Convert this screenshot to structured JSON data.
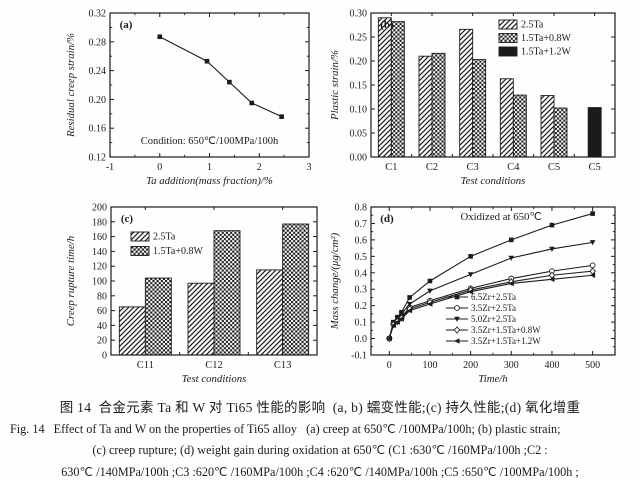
{
  "page": {
    "background": "#fefefe",
    "ink": "#1b1b1b"
  },
  "caption": {
    "zh": "图 14  合金元素 Ta 和 W 对 Ti65 性能的影响  (a, b) 蠕变性能;(c) 持久性能;(d) 氧化增重",
    "en1": "Fig. 14   Effect of Ta and W on the properties of Ti65 alloy   (a) creep at 650℃ /100MPa/100h; (b) plastic strain;",
    "en2": "(c) creep rupture; (d) weight gain during oxidation at 650℃ (C1 :630℃ /160MPa/100h ;C2 :",
    "en3": "630℃ /140MPa/100h ;C3 :620℃ /160MPa/100h ;C4 :620℃ /140MPa/100h ;C5 :650℃ /100MPa/100h ;"
  },
  "chart_data": [
    {
      "type": "line",
      "panel_label": "(a)",
      "xlabel": "Ta addition(mass fraction)/%",
      "ylabel": "Residual creep strain/%",
      "xlim": [
        -1,
        3
      ],
      "ylim": [
        0.12,
        0.32
      ],
      "xticks": [
        -1,
        0,
        1,
        2,
        3
      ],
      "yticks": [
        0.12,
        0.16,
        0.2,
        0.24,
        0.28,
        0.32
      ],
      "xdec": 0,
      "ydec": 2,
      "xminor": 0.5,
      "yminor": 0.02,
      "annotation": "Condition: 650℃/100MPa/100h",
      "grid": false,
      "legend_position": "none",
      "series": [
        {
          "name": "residual-creep-strain",
          "marker": "square",
          "x": [
            0,
            0.95,
            1.4,
            1.85,
            2.45
          ],
          "y": [
            0.287,
            0.253,
            0.224,
            0.195,
            0.176
          ]
        }
      ]
    },
    {
      "type": "bar",
      "panel_label": "(b)",
      "xlabel": "Test conditions",
      "ylabel": "Plastic strain/%",
      "ylim": [
        0,
        0.3
      ],
      "yticks": [
        0.0,
        0.05,
        0.1,
        0.15,
        0.2,
        0.25,
        0.3
      ],
      "ydec": 2,
      "grid": false,
      "legend_position": "top-right",
      "categories": [
        "C1",
        "C2",
        "C3",
        "C4",
        "C5",
        "C5"
      ],
      "series": [
        {
          "name": "2.5Ta",
          "pattern": "diag",
          "values": [
            0.29,
            0.21,
            0.266,
            0.163,
            0.128,
            null
          ]
        },
        {
          "name": "1.5Ta+0.8W",
          "pattern": "check",
          "values": [
            0.282,
            0.216,
            0.203,
            0.129,
            0.102,
            null
          ]
        },
        {
          "name": "1.5Ta+1.2W",
          "pattern": "solid",
          "values": [
            null,
            null,
            null,
            null,
            null,
            0.103
          ]
        }
      ]
    },
    {
      "type": "bar",
      "panel_label": "(c)",
      "xlabel": "Test conditions",
      "ylabel": "Creep rupture time/h",
      "ylim": [
        0,
        200
      ],
      "yticks": [
        0,
        20,
        40,
        60,
        80,
        100,
        120,
        140,
        160,
        180,
        200
      ],
      "ydec": 0,
      "grid": false,
      "legend_position": "upper-left",
      "categories": [
        "C11",
        "C12",
        "C13"
      ],
      "series": [
        {
          "name": "2.5Ta",
          "pattern": "diag",
          "values": [
            65,
            97,
            115
          ]
        },
        {
          "name": "1.5Ta+0.8W",
          "pattern": "check",
          "values": [
            104,
            168,
            177
          ]
        }
      ]
    },
    {
      "type": "line",
      "panel_label": "(d)",
      "title": "Oxidized at 650℃",
      "xlabel": "Time/h",
      "ylabel": "Mass change/(μg/cm²)",
      "xlim": [
        -45,
        555
      ],
      "ylim": [
        -0.1,
        0.8
      ],
      "xticks": [
        0,
        100,
        200,
        300,
        400,
        500
      ],
      "yticks": [
        -0.1,
        0.0,
        0.1,
        0.2,
        0.3,
        0.4,
        0.5,
        0.6,
        0.7,
        0.8
      ],
      "xdec": 0,
      "ydec": 1,
      "xminor": 50,
      "yminor": 0.05,
      "grid": false,
      "legend_position": "bottom-right",
      "series": [
        {
          "name": "6.5Zr+2.5Ta",
          "marker": "square",
          "x": [
            0,
            10,
            20,
            30,
            50,
            100,
            200,
            300,
            400,
            500
          ],
          "y": [
            0,
            0.1,
            0.13,
            0.16,
            0.25,
            0.35,
            0.5,
            0.6,
            0.69,
            0.76
          ]
        },
        {
          "name": "3.5Zr+2.5Ta",
          "marker": "circle",
          "x": [
            0,
            10,
            20,
            30,
            50,
            100,
            200,
            300,
            400,
            500
          ],
          "y": [
            0,
            0.09,
            0.11,
            0.13,
            0.19,
            0.23,
            0.305,
            0.365,
            0.41,
            0.445
          ]
        },
        {
          "name": "5.0Zr+2.5Ta",
          "marker": "tridown",
          "x": [
            0,
            10,
            20,
            30,
            50,
            100,
            200,
            300,
            400,
            500
          ],
          "y": [
            0,
            0.095,
            0.12,
            0.15,
            0.21,
            0.29,
            0.39,
            0.49,
            0.545,
            0.585
          ]
        },
        {
          "name": "3.5Zr+1.5Ta+0.8W",
          "marker": "diamond",
          "x": [
            0,
            10,
            20,
            30,
            50,
            100,
            200,
            300,
            400,
            500
          ],
          "y": [
            0,
            0.085,
            0.105,
            0.125,
            0.18,
            0.22,
            0.295,
            0.345,
            0.385,
            0.41
          ]
        },
        {
          "name": "3.5Zr+1.5Ta+1.2W",
          "marker": "trileft",
          "x": [
            0,
            10,
            20,
            30,
            50,
            100,
            200,
            300,
            400,
            500
          ],
          "y": [
            0,
            0.08,
            0.1,
            0.12,
            0.17,
            0.21,
            0.285,
            0.335,
            0.36,
            0.385
          ]
        }
      ]
    }
  ]
}
